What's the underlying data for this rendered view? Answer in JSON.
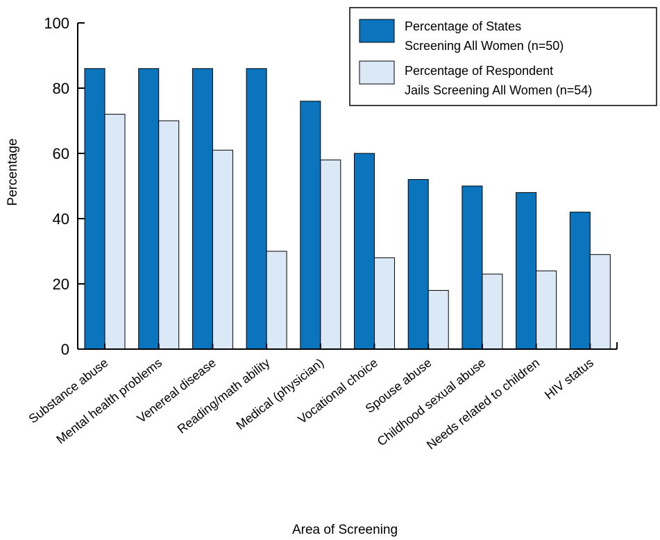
{
  "chart_data": {
    "type": "bar",
    "xlabel": "Area of Screening",
    "ylabel": "Percentage",
    "ylim": [
      0,
      100
    ],
    "yticks": [
      0,
      20,
      40,
      60,
      80,
      100
    ],
    "grid": false,
    "legend_position": "top-right",
    "categories": [
      "Substance abuse",
      "Mental health problems",
      "Venereal disease",
      "Reading/math ability",
      "Medical (physician)",
      "Vocational choice",
      "Spouse abuse",
      "Childhood sexual abuse",
      "Needs related to children",
      "HIV status"
    ],
    "series": [
      {
        "name_line1": "Percentage of States",
        "name_line2": "Screening All Women (n=50)",
        "color": "#0a74bd",
        "values": [
          86,
          86,
          86,
          86,
          76,
          60,
          52,
          50,
          48,
          42
        ]
      },
      {
        "name_line1": "Percentage of Respondent",
        "name_line2": "Jails Screening All Women (n=54)",
        "color": "#dbe9f6",
        "values": [
          72,
          70,
          61,
          30,
          58,
          28,
          18,
          23,
          24,
          29
        ]
      }
    ]
  }
}
